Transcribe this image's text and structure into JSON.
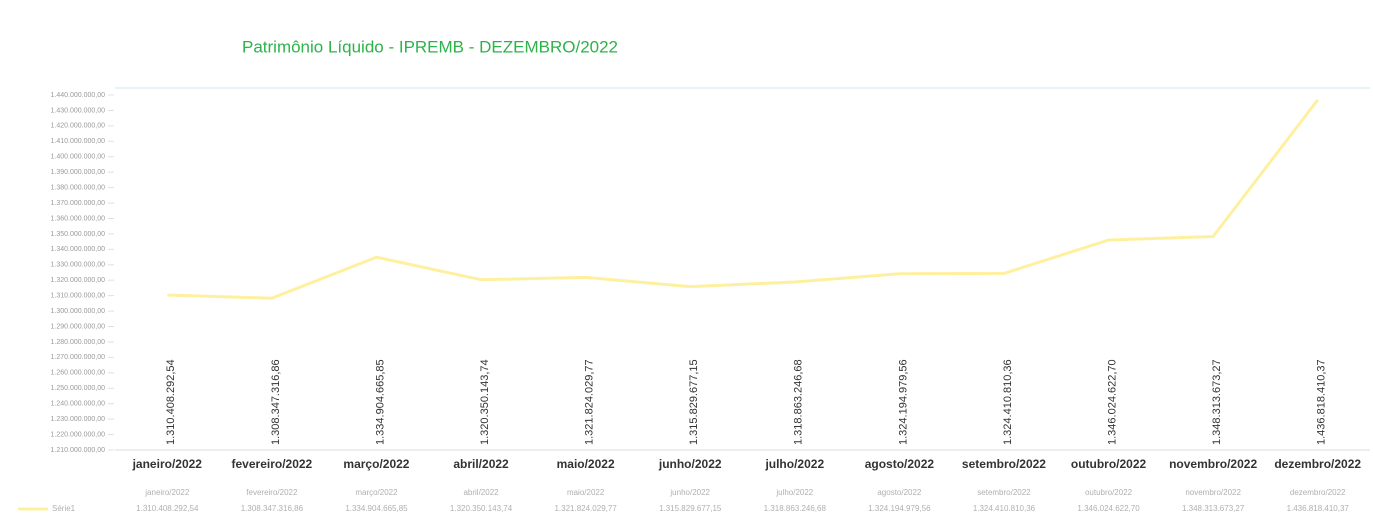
{
  "chart_data": {
    "type": "line",
    "title": "Patrimônio Líquido - IPREMB - DEZEMBRO/2022",
    "categories": [
      "janeiro/2022",
      "fevereiro/2022",
      "março/2022",
      "abril/2022",
      "maio/2022",
      "junho/2022",
      "julho/2022",
      "agosto/2022",
      "setembro/2022",
      "outubro/2022",
      "novembro/2022",
      "dezembro/2022"
    ],
    "series": [
      {
        "name": "Série1",
        "color": "#fff0a0",
        "values": [
          1310408292.54,
          1308347316.86,
          1334904665.85,
          1320350143.74,
          1321824029.77,
          1315829677.15,
          1318863246.68,
          1324194979.56,
          1324410810.36,
          1346024622.7,
          1348313673.27,
          1436818410.37
        ],
        "value_labels": [
          "1.310.408.292,54",
          "1.308.347.316,86",
          "1.334.904.665,85",
          "1.320.350.143,74",
          "1.321.824.029,77",
          "1.315.829.677,15",
          "1.318.863.246,68",
          "1.324.194.979,56",
          "1.324.410.810,36",
          "1.346.024.622,70",
          "1.348.313.673,27",
          "1.436.818.410,37"
        ]
      }
    ],
    "ylim": [
      1210000000,
      1440000000
    ],
    "yticks": [
      {
        "value": 1210000000,
        "label": "1.210.000.000,00"
      },
      {
        "value": 1220000000,
        "label": "1.220.000.000,00"
      },
      {
        "value": 1230000000,
        "label": "1.230.000.000,00"
      },
      {
        "value": 1240000000,
        "label": "1.240.000.000,00"
      },
      {
        "value": 1250000000,
        "label": "1.250.000.000,00"
      },
      {
        "value": 1260000000,
        "label": "1.260.000.000,00"
      },
      {
        "value": 1270000000,
        "label": "1.270.000.000,00"
      },
      {
        "value": 1280000000,
        "label": "1.280.000.000,00"
      },
      {
        "value": 1290000000,
        "label": "1.290.000.000,00"
      },
      {
        "value": 1300000000,
        "label": "1.300.000.000,00"
      },
      {
        "value": 1310000000,
        "label": "1.310.000.000,00"
      },
      {
        "value": 1320000000,
        "label": "1.320.000.000,00"
      },
      {
        "value": 1330000000,
        "label": "1.330.000.000,00"
      },
      {
        "value": 1340000000,
        "label": "1.340.000.000,00"
      },
      {
        "value": 1350000000,
        "label": "1.350.000.000,00"
      },
      {
        "value": 1360000000,
        "label": "1.360.000.000,00"
      },
      {
        "value": 1370000000,
        "label": "1.370.000.000,00"
      },
      {
        "value": 1380000000,
        "label": "1.380.000.000,00"
      },
      {
        "value": 1390000000,
        "label": "1.390.000.000,00"
      },
      {
        "value": 1400000000,
        "label": "1.400.000.000,00"
      },
      {
        "value": 1410000000,
        "label": "1.410.000.000,00"
      },
      {
        "value": 1420000000,
        "label": "1.420.000.000,00"
      },
      {
        "value": 1430000000,
        "label": "1.430.000.000,00"
      },
      {
        "value": 1440000000,
        "label": "1.440.000.000,00"
      }
    ],
    "grid": false
  }
}
